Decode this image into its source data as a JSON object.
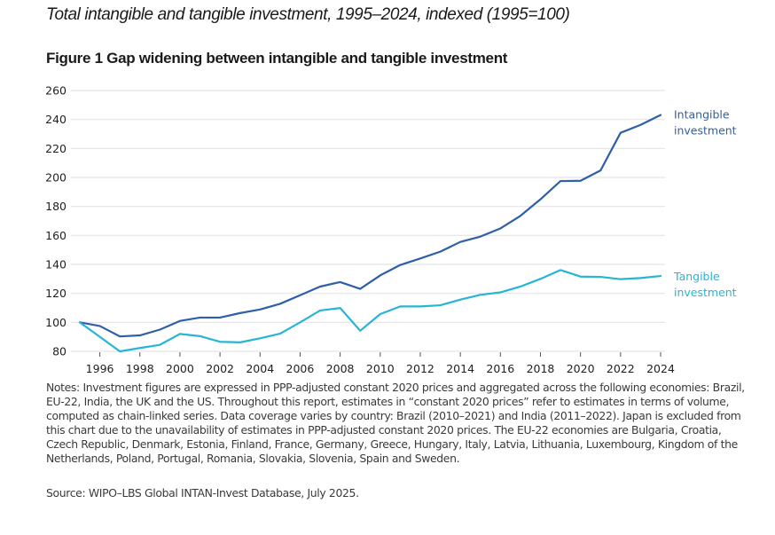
{
  "header": {
    "subtitle": "Total intangible and tangible investment, 1995–2024, indexed (1995=100)",
    "figure_title": "Figure 1 Gap widening between intangible and tangible investment"
  },
  "footer": {
    "notes": "Notes: Investment figures are expressed in PPP-adjusted constant 2020 prices and aggregated across the following economies: Brazil, EU-22, India, the UK and the US. Throughout this report, estimates in “constant 2020 prices” refer to estimates in terms of volume, computed as chain-linked series. Data coverage varies by country: Brazil (2010–2021) and India (2011–2022). Japan is excluded from this chart due to the unavailability of estimates in PPP-adjusted constant 2020 prices. The EU-22 economies are Bulgaria, Croatia, Czech Republic, Denmark, Estonia, Finland, France, Germany, Greece, Hungary, Italy, Latvia, Lithuania, Luxembourg, Kingdom of the Netherlands, Poland, Portugal, Romania, Slovakia, Slovenia, Spain and Sweden.",
    "source": "Source: WIPO–LBS Global INTAN-Invest Database, July 2025."
  },
  "chart_data": {
    "type": "line",
    "title": "Figure 1 Gap widening between intangible and tangible investment",
    "subtitle": "Total intangible and tangible investment, 1995–2024, indexed (1995=100)",
    "xlabel": "",
    "ylabel": "",
    "x": [
      1995,
      1996,
      1997,
      1998,
      1999,
      2000,
      2001,
      2002,
      2003,
      2004,
      2005,
      2006,
      2007,
      2008,
      2009,
      2010,
      2011,
      2012,
      2013,
      2014,
      2015,
      2016,
      2017,
      2018,
      2019,
      2020,
      2021,
      2022,
      2023,
      2024
    ],
    "x_ticks": [
      "1996",
      "1998",
      "2000",
      "2002",
      "2004",
      "2006",
      "2008",
      "2010",
      "2012",
      "2014",
      "2016",
      "2018",
      "2020",
      "2022",
      "2024"
    ],
    "y_ticks": [
      "80",
      "100",
      "120",
      "140",
      "160",
      "180",
      "200",
      "220",
      "240",
      "260"
    ],
    "xlim": [
      1995,
      2024
    ],
    "ylim": [
      80,
      260
    ],
    "grid": "horizontal",
    "legend": "inline-right",
    "series": [
      {
        "name": "Intangible investment",
        "label_lines": [
          "Intangible",
          "investment"
        ],
        "color": "#2E5FA8",
        "values": [
          100,
          97.5,
          90.3,
          91,
          95,
          101,
          103.3,
          103.3,
          106.4,
          108.9,
          112.8,
          118.7,
          124.7,
          127.8,
          123.1,
          132.4,
          139.6,
          144.1,
          148.8,
          155.5,
          159.2,
          164.8,
          173.5,
          184.9,
          197.5,
          197.7,
          204.8,
          230.8,
          236.3,
          243.1
        ]
      },
      {
        "name": "Tangible investment",
        "label_lines": [
          "Tangible",
          "investment"
        ],
        "color": "#26B5D6",
        "values": [
          100,
          90,
          80,
          82.3,
          84.5,
          92,
          90.5,
          86.6,
          86.2,
          89,
          92.2,
          100,
          108.2,
          109.9,
          94.2,
          105.7,
          111,
          111,
          111.8,
          115.7,
          119,
          120.7,
          124.7,
          130,
          136.1,
          131.6,
          131.4,
          129.8,
          130.6,
          132
        ]
      }
    ]
  }
}
